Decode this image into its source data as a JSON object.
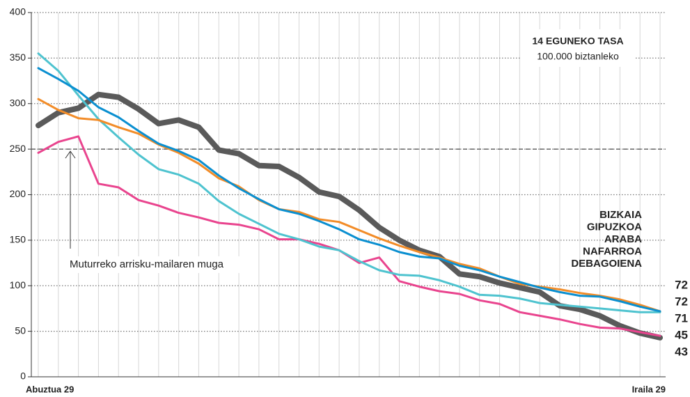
{
  "chart_data": {
    "type": "line",
    "title": "14 EGUNEKO TASA",
    "subtitle": "100.000 biztanleko",
    "categories": [
      "Abuztua 29",
      null,
      null,
      null,
      null,
      null,
      null,
      null,
      null,
      null,
      null,
      null,
      null,
      null,
      null,
      null,
      null,
      null,
      null,
      null,
      null,
      null,
      null,
      null,
      null,
      null,
      null,
      null,
      null,
      null,
      null,
      "Iraila 29"
    ],
    "ylim": [
      0,
      400
    ],
    "yticks": [
      0,
      50,
      100,
      150,
      200,
      250,
      300,
      350,
      400
    ],
    "grid": true,
    "threshold": {
      "value": 250,
      "label": "Muturreko arrisku-mailaren muga"
    },
    "series": [
      {
        "name": "BIZKAIA",
        "color": "#0a8fd0",
        "values": [
          339,
          327,
          314,
          296,
          285,
          270,
          256,
          248,
          238,
          221,
          207,
          195,
          184,
          179,
          171,
          162,
          151,
          145,
          137,
          132,
          130,
          122,
          117,
          110,
          104,
          98,
          93,
          89,
          88,
          83,
          77,
          72
        ]
      },
      {
        "name": "GIPUZKOA",
        "color": "#f28c28",
        "values": [
          305,
          293,
          284,
          282,
          274,
          267,
          255,
          246,
          234,
          218,
          209,
          194,
          184,
          181,
          173,
          170,
          161,
          152,
          144,
          137,
          131,
          124,
          119,
          110,
          102,
          99,
          96,
          92,
          89,
          85,
          79,
          72
        ]
      },
      {
        "name": "ARABA",
        "color": "#4ec3cf",
        "values": [
          355,
          336,
          309,
          283,
          263,
          244,
          228,
          222,
          212,
          193,
          179,
          168,
          157,
          151,
          143,
          139,
          127,
          117,
          112,
          111,
          106,
          99,
          90,
          89,
          86,
          81,
          79,
          77,
          75,
          73,
          71,
          71
        ]
      },
      {
        "name": "NAFARROA",
        "color": "#e9448e",
        "values": [
          246,
          258,
          264,
          212,
          208,
          194,
          188,
          180,
          175,
          169,
          167,
          162,
          151,
          151,
          146,
          139,
          125,
          131,
          105,
          99,
          94,
          91,
          84,
          80,
          71,
          67,
          63,
          58,
          54,
          53,
          49,
          45
        ]
      },
      {
        "name": "DEBAGOIENA",
        "color": "#5a5a5a",
        "values": [
          276,
          290,
          295,
          310,
          307,
          294,
          278,
          282,
          274,
          249,
          245,
          232,
          231,
          219,
          203,
          198,
          183,
          164,
          150,
          139,
          132,
          113,
          110,
          103,
          98,
          93,
          78,
          74,
          67,
          56,
          48,
          43
        ]
      }
    ]
  }
}
